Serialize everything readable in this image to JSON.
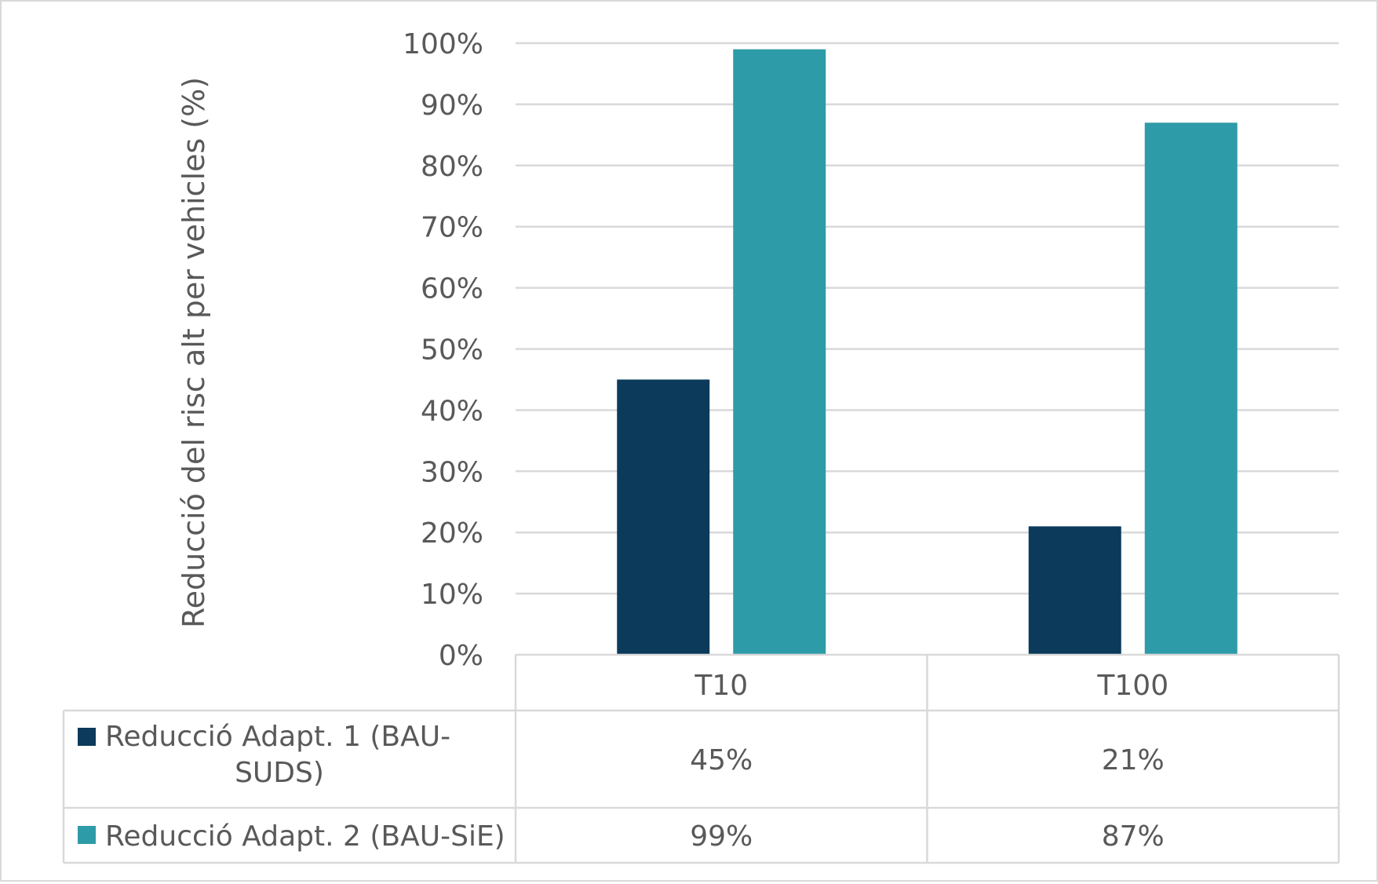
{
  "chart_data": {
    "type": "bar",
    "title": "",
    "xlabel": "",
    "ylabel": "Reducció del risc alt per vehicles (%)",
    "ylim": [
      0,
      100
    ],
    "yticks": [
      "0%",
      "10%",
      "20%",
      "30%",
      "40%",
      "50%",
      "60%",
      "70%",
      "80%",
      "90%",
      "100%"
    ],
    "categories": [
      "T10",
      "T100"
    ],
    "grid": true,
    "legend": "data-table",
    "series": [
      {
        "name": "Reducció Adapt. 1 (BAU-SUDS)",
        "name_lines": [
          "Reducció Adapt. 1 (BAU-",
          "SUDS)"
        ],
        "color": "#0b3a5b",
        "values": [
          45,
          21
        ],
        "labels": [
          "45%",
          "21%"
        ]
      },
      {
        "name": "Reducció Adapt. 2 (BAU-SiE)",
        "name_lines": [
          "Reducció Adapt. 2 (BAU-SiE)"
        ],
        "color": "#2e9ba8",
        "values": [
          99,
          87
        ],
        "labels": [
          "99%",
          "87%"
        ]
      }
    ]
  }
}
